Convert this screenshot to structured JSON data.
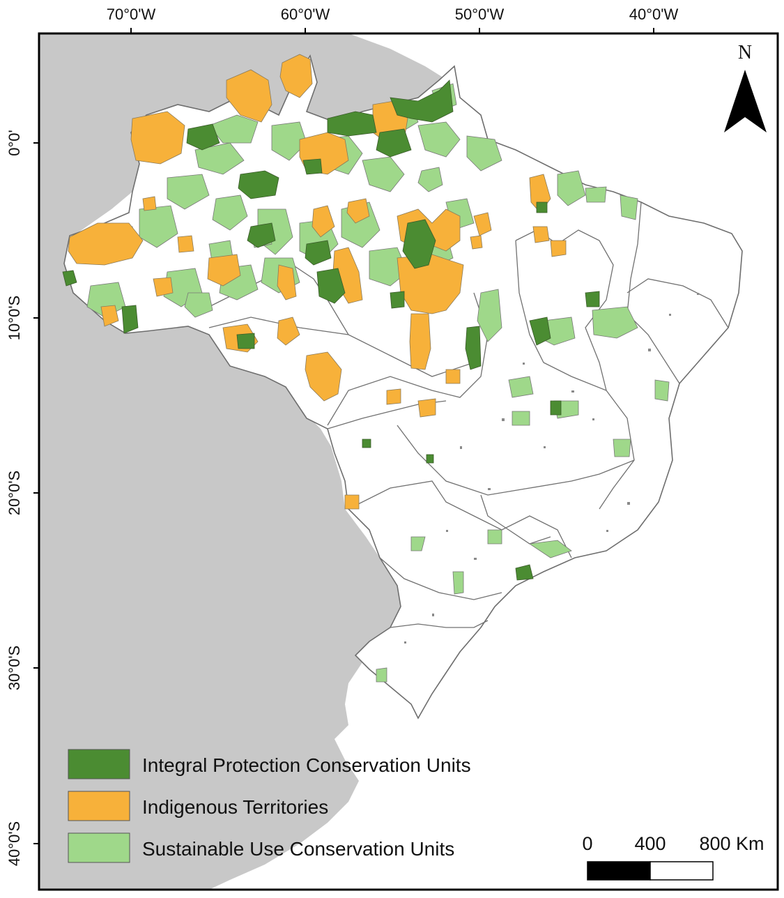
{
  "map": {
    "longitude_labels": [
      "70°0'W",
      "60°0'W",
      "50°0'W",
      "40°0'W"
    ],
    "latitude_labels": [
      "0°0'",
      "10°0'S",
      "20°0'S",
      "30°0'S",
      "40°0'S"
    ],
    "north_label": "N",
    "legend": [
      {
        "label": "Integral Protection Conservation Units",
        "color": "#4b8c32"
      },
      {
        "label": "Indigenous Territories",
        "color": "#f7b13a"
      },
      {
        "label": "Sustainable Use Conservation Units",
        "color": "#9fd88a"
      }
    ],
    "scale_bar": {
      "labels": [
        "0",
        "400",
        "800 Km"
      ]
    },
    "colors": {
      "land_outside": "#c8c8c8",
      "land_brazil": "#ffffff",
      "boundary": "#6e6e6e",
      "frame": "#000000"
    }
  }
}
